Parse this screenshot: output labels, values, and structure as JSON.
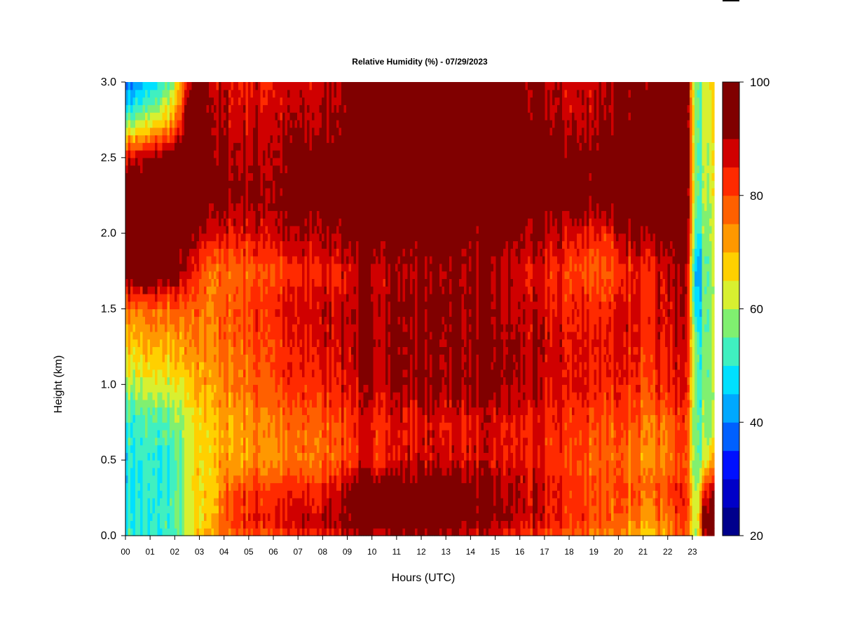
{
  "chart_data": {
    "type": "heatmap",
    "title": "Relative Humidity (%) - 07/29/2023",
    "xlabel": "Hours (UTC)",
    "ylabel": "Height (km)",
    "x_range": [
      0,
      24
    ],
    "y_range": [
      0,
      3
    ],
    "x_ticks": [
      "00",
      "01",
      "02",
      "03",
      "04",
      "05",
      "06",
      "07",
      "08",
      "09",
      "10",
      "11",
      "12",
      "13",
      "14",
      "15",
      "16",
      "17",
      "18",
      "19",
      "20",
      "21",
      "22",
      "23"
    ],
    "y_ticks": [
      "0.0",
      "0.5",
      "1.0",
      "1.5",
      "2.0",
      "2.5",
      "3.0"
    ],
    "colorbar": {
      "min": 20,
      "max": 100,
      "ticks": [
        "20",
        "40",
        "60",
        "80",
        "100"
      ],
      "levels": [
        20,
        25,
        30,
        35,
        40,
        45,
        50,
        55,
        60,
        65,
        70,
        75,
        80,
        85,
        90,
        95,
        100
      ],
      "colors": [
        "#00008c",
        "#0000c8",
        "#0010ff",
        "#0060ff",
        "#00a8ff",
        "#00e0ff",
        "#40f0c0",
        "#80f070",
        "#d8f030",
        "#ffd000",
        "#ff9800",
        "#ff6000",
        "#ff2a00",
        "#d00000",
        "#800000",
        "#800000"
      ]
    },
    "hours": [
      0.0,
      1.0,
      2.0,
      2.5,
      3.0,
      3.7,
      4.5,
      6.0,
      8.0,
      9.5,
      11.0,
      13.0,
      15.0,
      17.0,
      18.5,
      19.5,
      21.0,
      22.0,
      22.9,
      23.3,
      23.55,
      23.85
    ],
    "heights_km": [
      0.0,
      0.1,
      0.3,
      0.5,
      0.75,
      1.0,
      1.25,
      1.5,
      1.75,
      2.0,
      2.25,
      2.5,
      2.75,
      3.0
    ],
    "rh_percent": [
      [
        52,
        50,
        52,
        58,
        68,
        74,
        78,
        80,
        84,
        90,
        90,
        90,
        84,
        80,
        78,
        76,
        68,
        72,
        80,
        55,
        88,
        95
      ],
      [
        50,
        50,
        54,
        60,
        66,
        72,
        84,
        86,
        88,
        96,
        96,
        97,
        92,
        86,
        82,
        80,
        74,
        76,
        82,
        55,
        94,
        99
      ],
      [
        50,
        50,
        52,
        60,
        66,
        70,
        82,
        82,
        84,
        96,
        96,
        98,
        92,
        86,
        82,
        80,
        78,
        80,
        84,
        55,
        80,
        90
      ],
      [
        50,
        50,
        52,
        60,
        66,
        70,
        72,
        74,
        76,
        84,
        86,
        88,
        86,
        84,
        80,
        78,
        74,
        76,
        80,
        50,
        60,
        70
      ],
      [
        52,
        52,
        56,
        60,
        66,
        70,
        72,
        76,
        78,
        84,
        86,
        86,
        86,
        84,
        82,
        80,
        78,
        78,
        82,
        50,
        56,
        60
      ],
      [
        60,
        62,
        64,
        66,
        70,
        72,
        76,
        80,
        84,
        88,
        92,
        92,
        92,
        88,
        86,
        84,
        82,
        84,
        86,
        50,
        56,
        60
      ],
      [
        68,
        70,
        70,
        72,
        74,
        76,
        78,
        82,
        86,
        90,
        92,
        92,
        92,
        88,
        86,
        86,
        84,
        86,
        88,
        50,
        54,
        60
      ],
      [
        76,
        76,
        78,
        76,
        76,
        76,
        80,
        84,
        88,
        90,
        92,
        94,
        90,
        86,
        84,
        84,
        86,
        88,
        90,
        40,
        54,
        60
      ],
      [
        98,
        98,
        96,
        86,
        80,
        76,
        78,
        80,
        84,
        88,
        90,
        92,
        90,
        84,
        80,
        78,
        84,
        88,
        90,
        35,
        54,
        60
      ],
      [
        99,
        99,
        98,
        94,
        90,
        86,
        86,
        88,
        90,
        94,
        96,
        96,
        94,
        90,
        86,
        84,
        92,
        94,
        96,
        45,
        56,
        62
      ],
      [
        99,
        99,
        98,
        98,
        98,
        94,
        92,
        92,
        96,
        98,
        98,
        98,
        98,
        96,
        96,
        96,
        98,
        98,
        98,
        50,
        58,
        64
      ],
      [
        88,
        90,
        96,
        98,
        98,
        92,
        90,
        90,
        94,
        98,
        98,
        98,
        98,
        96,
        92,
        94,
        98,
        98,
        98,
        50,
        58,
        64
      ],
      [
        55,
        60,
        72,
        92,
        96,
        90,
        88,
        88,
        90,
        96,
        98,
        98,
        96,
        92,
        88,
        92,
        96,
        98,
        98,
        50,
        60,
        66
      ],
      [
        38,
        44,
        58,
        84,
        92,
        88,
        86,
        86,
        88,
        94,
        96,
        96,
        94,
        90,
        88,
        90,
        94,
        96,
        96,
        50,
        60,
        66
      ]
    ]
  }
}
